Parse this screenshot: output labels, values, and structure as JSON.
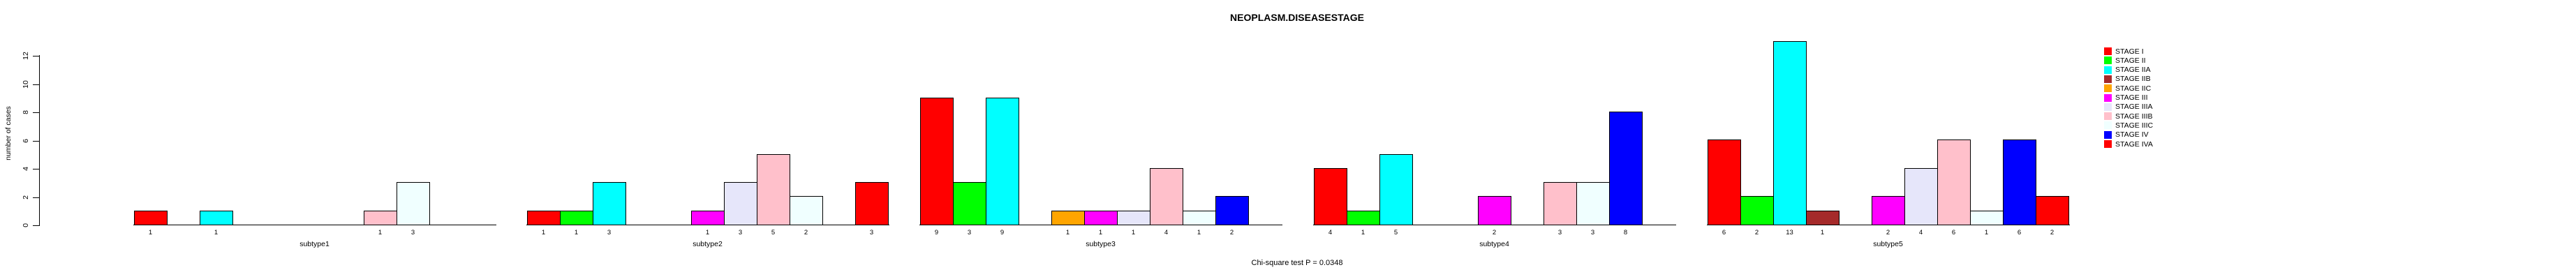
{
  "chart_data": {
    "type": "bar",
    "title": "NEOPLASM.DISEASESTAGE",
    "ylabel": "number of cases",
    "xlabel": "",
    "subtitle": "Chi-square test P = 0.0348",
    "ylim": [
      0,
      12
    ],
    "yticks": [
      0,
      2,
      4,
      6,
      8,
      10,
      12
    ],
    "grid": false,
    "legend_position": "right",
    "background_color": "#ffffff",
    "bar_border_color": "#000000",
    "stages": [
      {
        "label": "STAGE I",
        "color": "#FF0000"
      },
      {
        "label": "STAGE II",
        "color": "#00FF00"
      },
      {
        "label": "STAGE IIA",
        "color": "#00FFFF"
      },
      {
        "label": "STAGE IIB",
        "color": "#A52A2A"
      },
      {
        "label": "STAGE IIC",
        "color": "#FFA500"
      },
      {
        "label": "STAGE III",
        "color": "#FF00FF"
      },
      {
        "label": "STAGE IIIA",
        "color": "#E6E6FA"
      },
      {
        "label": "STAGE IIIB",
        "color": "#FFC0CB"
      },
      {
        "label": "STAGE IIIC",
        "color": "#F0FFFF"
      },
      {
        "label": "STAGE IV",
        "color": "#0000FF"
      },
      {
        "label": "STAGE IVA",
        "color": "#FF0000"
      }
    ],
    "groups": [
      {
        "label": "subtype1",
        "values": [
          1,
          0,
          1,
          0,
          0,
          0,
          0,
          1,
          3,
          0,
          0
        ]
      },
      {
        "label": "subtype2",
        "values": [
          1,
          1,
          3,
          0,
          0,
          1,
          3,
          5,
          2,
          0,
          3
        ]
      },
      {
        "label": "subtype3",
        "values": [
          9,
          3,
          9,
          0,
          1,
          1,
          1,
          4,
          1,
          2,
          0
        ]
      },
      {
        "label": "subtype4",
        "values": [
          4,
          1,
          5,
          0,
          0,
          2,
          0,
          3,
          3,
          8,
          0
        ]
      },
      {
        "label": "subtype5",
        "values": [
          6,
          2,
          13,
          1,
          0,
          2,
          4,
          6,
          1,
          6,
          2
        ]
      }
    ]
  }
}
